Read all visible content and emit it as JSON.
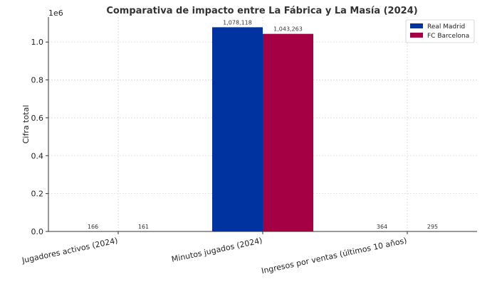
{
  "chart_data": {
    "type": "bar",
    "title": "Comparativa de impacto entre La Fábrica y La Masía (2024)",
    "ylabel": "Cifra total",
    "xlabel": "",
    "y_offset_label": "1e6",
    "categories": [
      "Jugadores activos (2024)",
      "Minutos jugados (2024)",
      "Ingresos por ventas (últimos 10 años)"
    ],
    "series": [
      {
        "name": "Real Madrid",
        "color": "#0033a0",
        "values": [
          166,
          1078118,
          364
        ],
        "labels": [
          "166",
          "1,078,118",
          "364"
        ]
      },
      {
        "name": "FC Barcelona",
        "color": "#a50044",
        "values": [
          161,
          1043263,
          295
        ],
        "labels": [
          "161",
          "1,043,263",
          "295"
        ]
      }
    ],
    "ylim": [
      0,
      1132000
    ],
    "yticks": [
      0,
      200000,
      400000,
      600000,
      800000,
      1000000
    ],
    "ytick_labels": [
      "0.0",
      "0.2",
      "0.4",
      "0.6",
      "0.8",
      "1.0"
    ],
    "grid": true,
    "legend_position": "top-right"
  }
}
